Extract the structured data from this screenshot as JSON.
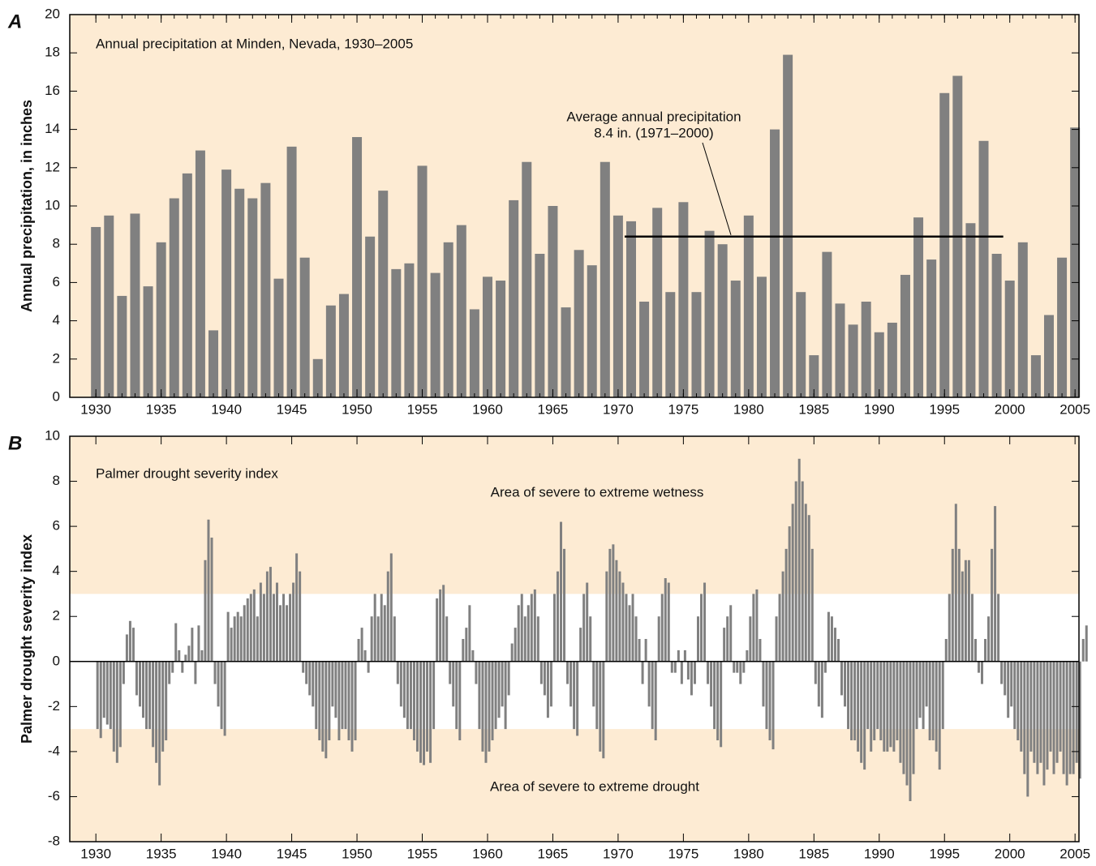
{
  "chart_data": [
    {
      "type": "bar",
      "panel_label": "A",
      "title": "Annual precipitation at Minden, Nevada, 1930–2005",
      "y_label": "Annual precipitation, in inches",
      "background": "#fdebd3",
      "color": "#808080",
      "x": [
        1930,
        1931,
        1932,
        1933,
        1934,
        1935,
        1936,
        1937,
        1938,
        1939,
        1940,
        1941,
        1942,
        1943,
        1944,
        1945,
        1946,
        1947,
        1948,
        1949,
        1950,
        1951,
        1952,
        1953,
        1954,
        1955,
        1956,
        1957,
        1958,
        1959,
        1960,
        1961,
        1962,
        1963,
        1964,
        1965,
        1966,
        1967,
        1968,
        1969,
        1970,
        1971,
        1972,
        1973,
        1974,
        1975,
        1976,
        1977,
        1978,
        1979,
        1980,
        1981,
        1982,
        1983,
        1984,
        1985,
        1986,
        1987,
        1988,
        1989,
        1990,
        1991,
        1992,
        1993,
        1994,
        1995,
        1996,
        1997,
        1998,
        1999,
        2000,
        2001,
        2002,
        2003,
        2004,
        2005
      ],
      "values": [
        8.9,
        9.5,
        5.3,
        9.6,
        5.8,
        8.1,
        10.4,
        11.7,
        12.9,
        3.5,
        11.9,
        10.9,
        10.4,
        11.2,
        6.2,
        13.1,
        7.3,
        2.0,
        4.8,
        5.4,
        13.6,
        8.4,
        10.8,
        6.7,
        7.0,
        12.1,
        6.5,
        8.1,
        9.0,
        4.6,
        6.3,
        6.1,
        10.3,
        12.3,
        7.5,
        10.0,
        4.7,
        7.7,
        6.9,
        12.3,
        9.5,
        9.2,
        5.0,
        9.9,
        5.5,
        10.2,
        5.5,
        8.7,
        8.0,
        6.1,
        9.5,
        6.3,
        14.0,
        17.9,
        5.5,
        2.2,
        7.6,
        4.9,
        3.8,
        5.0,
        3.4,
        3.9,
        6.4,
        9.4,
        7.2,
        15.9,
        16.8,
        9.1,
        13.4,
        7.5,
        6.1,
        8.1,
        2.2,
        4.3,
        7.3,
        14.1
      ],
      "reference_line": {
        "value": 8.4,
        "x": [
          1970.5,
          1999.5
        ],
        "label": [
          "Average annual precipitation",
          "8.4 in. (1971–2000)"
        ]
      },
      "xlim": [
        1928,
        2005.3
      ],
      "xticks": [
        1930,
        1935,
        1940,
        1945,
        1950,
        1955,
        1960,
        1965,
        1970,
        1975,
        1980,
        1985,
        1990,
        1995,
        2000,
        2005
      ],
      "ylim": [
        0,
        20
      ],
      "yticks": [
        0,
        2,
        4,
        6,
        8,
        10,
        12,
        14,
        16,
        18,
        20
      ]
    },
    {
      "type": "bar",
      "panel_label": "B",
      "title": "Palmer drought severity index",
      "y_label": "Palmer drought severity index",
      "background": "#ffffff",
      "color": "#808080",
      "bands": [
        {
          "range": [
            3,
            10
          ],
          "label": "Area of severe to extreme wetness",
          "color": "#fdebd3"
        },
        {
          "range": [
            -8,
            -3
          ],
          "label": "Area of severe to extreme drought",
          "color": "#fdebd3"
        }
      ],
      "x": [
        1930.125,
        1930.375,
        1930.625,
        1930.875,
        1931.125,
        1931.375,
        1931.625,
        1931.875,
        1932.125,
        1932.375,
        1932.625,
        1932.875,
        1933.125,
        1933.375,
        1933.625,
        1933.875,
        1934.125,
        1934.375,
        1934.625,
        1934.875,
        1935.125,
        1935.375,
        1935.625,
        1935.875,
        1936.125,
        1936.375,
        1936.625,
        1936.875,
        1937.125,
        1937.375,
        1937.625,
        1937.875,
        1938.125,
        1938.375,
        1938.625,
        1938.875,
        1939.125,
        1939.375,
        1939.625,
        1939.875,
        1940.125,
        1940.375,
        1940.625,
        1940.875,
        1941.125,
        1941.375,
        1941.625,
        1941.875,
        1942.125,
        1942.375,
        1942.625,
        1942.875,
        1943.125,
        1943.375,
        1943.625,
        1943.875,
        1944.125,
        1944.375,
        1944.625,
        1944.875,
        1945.125,
        1945.375,
        1945.625,
        1945.875,
        1946.125,
        1946.375,
        1946.625,
        1946.875,
        1947.125,
        1947.375,
        1947.625,
        1947.875,
        1948.125,
        1948.375,
        1948.625,
        1948.875,
        1949.125,
        1949.375,
        1949.625,
        1949.875,
        1950.125,
        1950.375,
        1950.625,
        1950.875,
        1951.125,
        1951.375,
        1951.625,
        1951.875,
        1952.125,
        1952.375,
        1952.625,
        1952.875,
        1953.125,
        1953.375,
        1953.625,
        1953.875,
        1954.125,
        1954.375,
        1954.625,
        1954.875,
        1955.125,
        1955.375,
        1955.625,
        1955.875,
        1956.125,
        1956.375,
        1956.625,
        1956.875,
        1957.125,
        1957.375,
        1957.625,
        1957.875,
        1958.125,
        1958.375,
        1958.625,
        1958.875,
        1959.125,
        1959.375,
        1959.625,
        1959.875,
        1960.125,
        1960.375,
        1960.625,
        1960.875,
        1961.125,
        1961.375,
        1961.625,
        1961.875,
        1962.125,
        1962.375,
        1962.625,
        1962.875,
        1963.125,
        1963.375,
        1963.625,
        1963.875,
        1964.125,
        1964.375,
        1964.625,
        1964.875,
        1965.125,
        1965.375,
        1965.625,
        1965.875,
        1966.125,
        1966.375,
        1966.625,
        1966.875,
        1967.125,
        1967.375,
        1967.625,
        1967.875,
        1968.125,
        1968.375,
        1968.625,
        1968.875,
        1969.125,
        1969.375,
        1969.625,
        1969.875,
        1970.125,
        1970.375,
        1970.625,
        1970.875,
        1971.125,
        1971.375,
        1971.625,
        1971.875,
        1972.125,
        1972.375,
        1972.625,
        1972.875,
        1973.125,
        1973.375,
        1973.625,
        1973.875,
        1974.125,
        1974.375,
        1974.625,
        1974.875,
        1975.125,
        1975.375,
        1975.625,
        1975.875,
        1976.125,
        1976.375,
        1976.625,
        1976.875,
        1977.125,
        1977.375,
        1977.625,
        1977.875,
        1978.125,
        1978.375,
        1978.625,
        1978.875,
        1979.125,
        1979.375,
        1979.625,
        1979.875,
        1980.125,
        1980.375,
        1980.625,
        1980.875,
        1981.125,
        1981.375,
        1981.625,
        1981.875,
        1982.125,
        1982.375,
        1982.625,
        1982.875,
        1983.125,
        1983.375,
        1983.625,
        1983.875,
        1984.125,
        1984.375,
        1984.625,
        1984.875,
        1985.125,
        1985.375,
        1985.625,
        1985.875,
        1986.125,
        1986.375,
        1986.625,
        1986.875,
        1987.125,
        1987.375,
        1987.625,
        1987.875,
        1988.125,
        1988.375,
        1988.625,
        1988.875,
        1989.125,
        1989.375,
        1989.625,
        1989.875,
        1990.125,
        1990.375,
        1990.625,
        1990.875,
        1991.125,
        1991.375,
        1991.625,
        1991.875,
        1992.125,
        1992.375,
        1992.625,
        1992.875,
        1993.125,
        1993.375,
        1993.625,
        1993.875,
        1994.125,
        1994.375,
        1994.625,
        1994.875,
        1995.125,
        1995.375,
        1995.625,
        1995.875,
        1996.125,
        1996.375,
        1996.625,
        1996.875,
        1997.125,
        1997.375,
        1997.625,
        1997.875,
        1998.125,
        1998.375,
        1998.625,
        1998.875,
        1999.125,
        1999.375,
        1999.625,
        1999.875,
        2000.125,
        2000.375,
        2000.625,
        2000.875,
        2001.125,
        2001.375,
        2001.625,
        2001.875,
        2002.125,
        2002.375,
        2002.625,
        2002.875,
        2003.125,
        2003.375,
        2003.625,
        2003.875,
        2004.125,
        2004.375,
        2004.625,
        2004.875,
        2005.125,
        2005.375,
        2005.625,
        2005.875
      ],
      "values": [
        -3,
        -3.4,
        -2.5,
        -2.8,
        -3,
        -4,
        -4.5,
        -3.8,
        -1,
        1.2,
        1.8,
        1.5,
        -1.5,
        -2,
        -2.5,
        -3,
        -3,
        -3.8,
        -4.5,
        -5.5,
        -4,
        -3.5,
        -1,
        -0.5,
        1.7,
        0.5,
        -0.5,
        0.3,
        0.7,
        1.5,
        -1,
        1.6,
        0.5,
        4.5,
        6.3,
        5.5,
        -1,
        -2,
        -3,
        -3.3,
        2.2,
        1.5,
        2,
        2.2,
        2,
        2.5,
        2.8,
        3,
        3.2,
        2,
        3.5,
        3,
        4,
        4.2,
        3,
        3.5,
        2.5,
        3,
        2.5,
        3,
        3.5,
        4.8,
        4,
        -0.5,
        -1,
        -1.5,
        -2,
        -3,
        -3.5,
        -4,
        -4.3,
        -3.5,
        -2,
        -2.5,
        -3.5,
        -3,
        -3,
        -3.5,
        -4,
        -3.5,
        1,
        1.5,
        0.5,
        -0.5,
        2,
        3,
        2,
        3,
        2.5,
        4,
        4.8,
        2,
        -1,
        -2,
        -2.5,
        -3,
        -3,
        -3.5,
        -4,
        -4.5,
        -4.6,
        -4,
        -4.5,
        -3,
        2.8,
        3.2,
        3.4,
        2,
        -1,
        -2,
        -3,
        -3.5,
        1,
        1.5,
        2.5,
        0.5,
        -1,
        -3,
        -4,
        -4.5,
        -4,
        -3.5,
        -3,
        -2.5,
        -2,
        -3,
        -1.5,
        0.8,
        1.5,
        2.5,
        3,
        2,
        2.5,
        3,
        3.2,
        2,
        -1,
        -1.5,
        -2.5,
        -2,
        3,
        4,
        6.2,
        5,
        -1,
        -2,
        -3,
        -3.3,
        1.5,
        3,
        3.5,
        2,
        -2,
        -3,
        -4,
        -4.3,
        4,
        5,
        5.2,
        4.5,
        4,
        3.5,
        3,
        2.5,
        3,
        2,
        1,
        -1,
        1,
        -2,
        -3,
        -3.5,
        2,
        3,
        3.7,
        3.5,
        -0.5,
        -0.5,
        0.5,
        -1,
        0.5,
        -0.8,
        -1.5,
        -1,
        2,
        3,
        3.5,
        -1,
        -2,
        -3,
        -3.5,
        -3.8,
        1.5,
        2,
        2.5,
        -0.5,
        -0.5,
        -1,
        -0.5,
        0.5,
        2,
        3,
        3.2,
        1,
        -2,
        -3,
        -3.5,
        -3.9,
        2,
        3,
        4,
        5,
        6,
        7,
        8,
        9,
        8,
        7,
        6.5,
        5,
        -1,
        -2,
        -2.5,
        -0.5,
        2.2,
        2,
        1.5,
        1,
        -1.5,
        -2,
        -3,
        -3.5,
        -3.5,
        -4,
        -4.5,
        -4.8,
        -3,
        -4,
        -3.5,
        -3,
        -3.5,
        -4,
        -4,
        -3.8,
        -4,
        -3.5,
        -4.5,
        -5,
        -5.5,
        -6.2,
        -5,
        -3,
        -2.5,
        -3,
        -2,
        -3.5,
        -3.5,
        -4,
        -4.8,
        -3,
        1,
        3,
        5,
        7,
        5,
        4,
        4.5,
        4.5,
        3,
        1,
        -0.5,
        -1,
        1,
        2,
        5,
        6.9,
        3,
        -1,
        -1.5,
        -2.5,
        -2,
        -3,
        -3.5,
        -4,
        -5,
        -6,
        -4,
        -4.5,
        -5,
        -4.5,
        -5.5,
        -4.8,
        -4,
        -5,
        -4.5,
        -4,
        -5,
        -5.5,
        -5,
        -5,
        -4.5,
        -5.2,
        1,
        1.6
      ],
      "xlim": [
        1928,
        2005.3
      ],
      "xticks": [
        1930,
        1935,
        1940,
        1945,
        1950,
        1955,
        1960,
        1965,
        1970,
        1975,
        1980,
        1985,
        1990,
        1995,
        2000,
        2005
      ],
      "ylim": [
        -8,
        10
      ],
      "yticks": [
        -8,
        -6,
        -4,
        -2,
        0,
        2,
        4,
        6,
        8,
        10
      ]
    }
  ]
}
